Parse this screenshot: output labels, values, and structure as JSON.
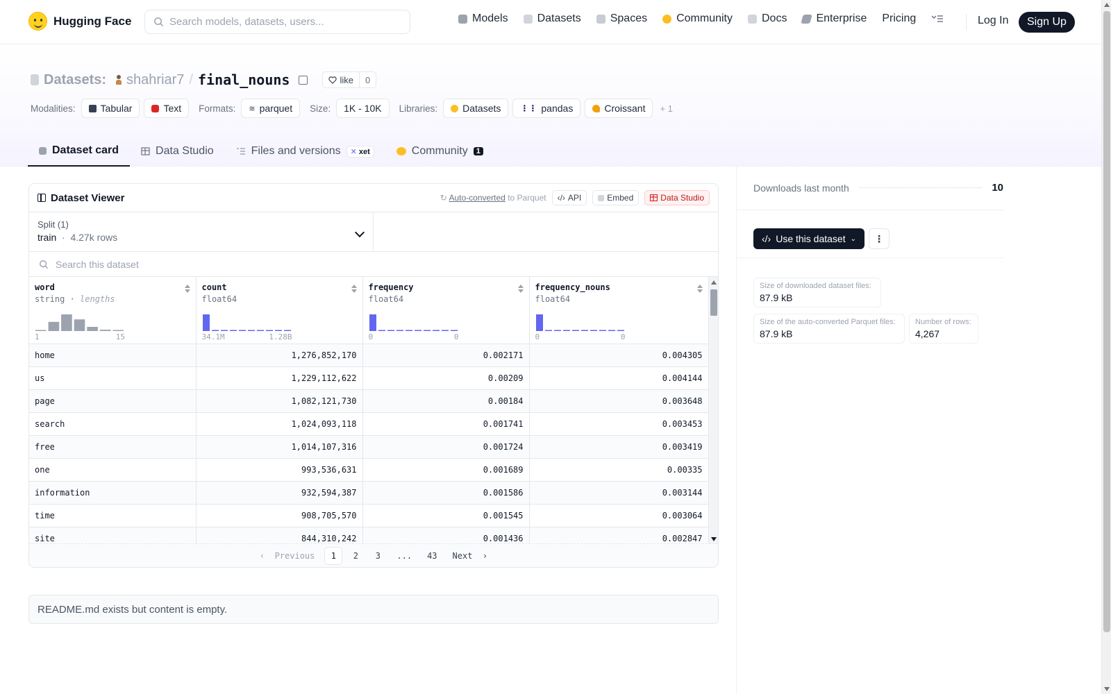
{
  "nav": {
    "brand": "Hugging Face",
    "search_placeholder": "Search models, datasets, users...",
    "links": [
      {
        "label": "Models",
        "icon": "models-icon",
        "color": "#9ca3af"
      },
      {
        "label": "Datasets",
        "icon": "datasets-icon",
        "color": "#d1d5db"
      },
      {
        "label": "Spaces",
        "icon": "spaces-icon",
        "color": "#c7cbd3"
      },
      {
        "label": "Community",
        "icon": "community-icon",
        "color": "#fbbf24"
      },
      {
        "label": "Docs",
        "icon": "docs-icon",
        "color": "#d1d5db"
      },
      {
        "label": "Enterprise",
        "icon": "enterprise-icon",
        "color": "#9ca3af"
      },
      {
        "label": "Pricing",
        "icon": "",
        "color": ""
      }
    ],
    "login": "Log In",
    "signup": "Sign Up"
  },
  "header": {
    "section": "Datasets:",
    "owner": "shahriar7",
    "separator": "/",
    "name": "final_nouns",
    "like_label": "like",
    "like_count": "0",
    "modalities_label": "Modalities:",
    "modalities": [
      "Tabular",
      "Text"
    ],
    "formats_label": "Formats:",
    "formats": [
      "parquet"
    ],
    "size_label": "Size:",
    "size": "1K - 10K",
    "libraries_label": "Libraries:",
    "libraries": [
      "Datasets",
      "pandas",
      "Croissant"
    ],
    "libraries_more": "+ 1"
  },
  "tabs": [
    {
      "label": "Dataset card",
      "active": true
    },
    {
      "label": "Data Studio",
      "active": false
    },
    {
      "label": "Files and versions",
      "badge": "xet",
      "active": false
    },
    {
      "label": "Community",
      "badge": "1",
      "active": false
    }
  ],
  "viewer": {
    "title": "Dataset Viewer",
    "auto_converted": "Auto-converted",
    "to_parquet": "to Parquet",
    "api_label": "API",
    "embed_label": "Embed",
    "studio_label": "Data Studio",
    "split_label": "Split (1)",
    "split_name": "train",
    "split_rows": "4.27k rows",
    "search_placeholder": "Search this dataset",
    "columns": [
      {
        "name": "word",
        "type": "string",
        "type_note": "lengths",
        "axis_min": "1",
        "axis_max": "15",
        "hist": [
          0.05,
          0.55,
          1.0,
          0.7,
          0.25,
          0.08,
          0.04
        ],
        "hist_color": "#9ca3af"
      },
      {
        "name": "count",
        "type": "float64",
        "type_note": "",
        "axis_min": "34.1M",
        "axis_max": "1.28B",
        "hist": [
          1.0,
          0.06,
          0.03,
          0.03,
          0.03,
          0.03,
          0.03,
          0.03,
          0.03,
          0.03
        ],
        "hist_color": "#6366f1"
      },
      {
        "name": "frequency",
        "type": "float64",
        "type_note": "",
        "axis_min": "0",
        "axis_max": "0",
        "hist": [
          1.0,
          0.06,
          0.03,
          0.03,
          0.03,
          0.03,
          0.03,
          0.03,
          0.03,
          0.03
        ],
        "hist_color": "#6366f1"
      },
      {
        "name": "frequency_nouns",
        "type": "float64",
        "type_note": "",
        "axis_min": "0",
        "axis_max": "0",
        "hist": [
          1.0,
          0.06,
          0.03,
          0.03,
          0.03,
          0.03,
          0.03,
          0.03,
          0.03,
          0.03
        ],
        "hist_color": "#6366f1"
      }
    ],
    "rows": [
      [
        "home",
        "1,276,852,170",
        "0.002171",
        "0.004305"
      ],
      [
        "us",
        "1,229,112,622",
        "0.00209",
        "0.004144"
      ],
      [
        "page",
        "1,082,121,730",
        "0.00184",
        "0.003648"
      ],
      [
        "search",
        "1,024,093,118",
        "0.001741",
        "0.003453"
      ],
      [
        "free",
        "1,014,107,316",
        "0.001724",
        "0.003419"
      ],
      [
        "one",
        "993,536,631",
        "0.001689",
        "0.00335"
      ],
      [
        "information",
        "932,594,387",
        "0.001586",
        "0.003144"
      ],
      [
        "time",
        "908,705,570",
        "0.001545",
        "0.003064"
      ],
      [
        "site",
        "844,310,242",
        "0.001436",
        "0.002847"
      ]
    ],
    "pager": {
      "prev": "Previous",
      "next": "Next",
      "pages": [
        "1",
        "2",
        "3",
        "...",
        "43"
      ],
      "current": "1"
    }
  },
  "readme_text": "README.md exists but content is empty.",
  "sidebar": {
    "downloads_label": "Downloads last month",
    "downloads_value": "10",
    "use_button": "Use this dataset",
    "stats": [
      {
        "key": "Size of downloaded dataset files:",
        "value": "87.9 kB"
      },
      {
        "key": "Size of the auto-converted Parquet files:",
        "value": "87.9 kB"
      },
      {
        "key": "Number of rows:",
        "value": "4,267"
      }
    ]
  }
}
